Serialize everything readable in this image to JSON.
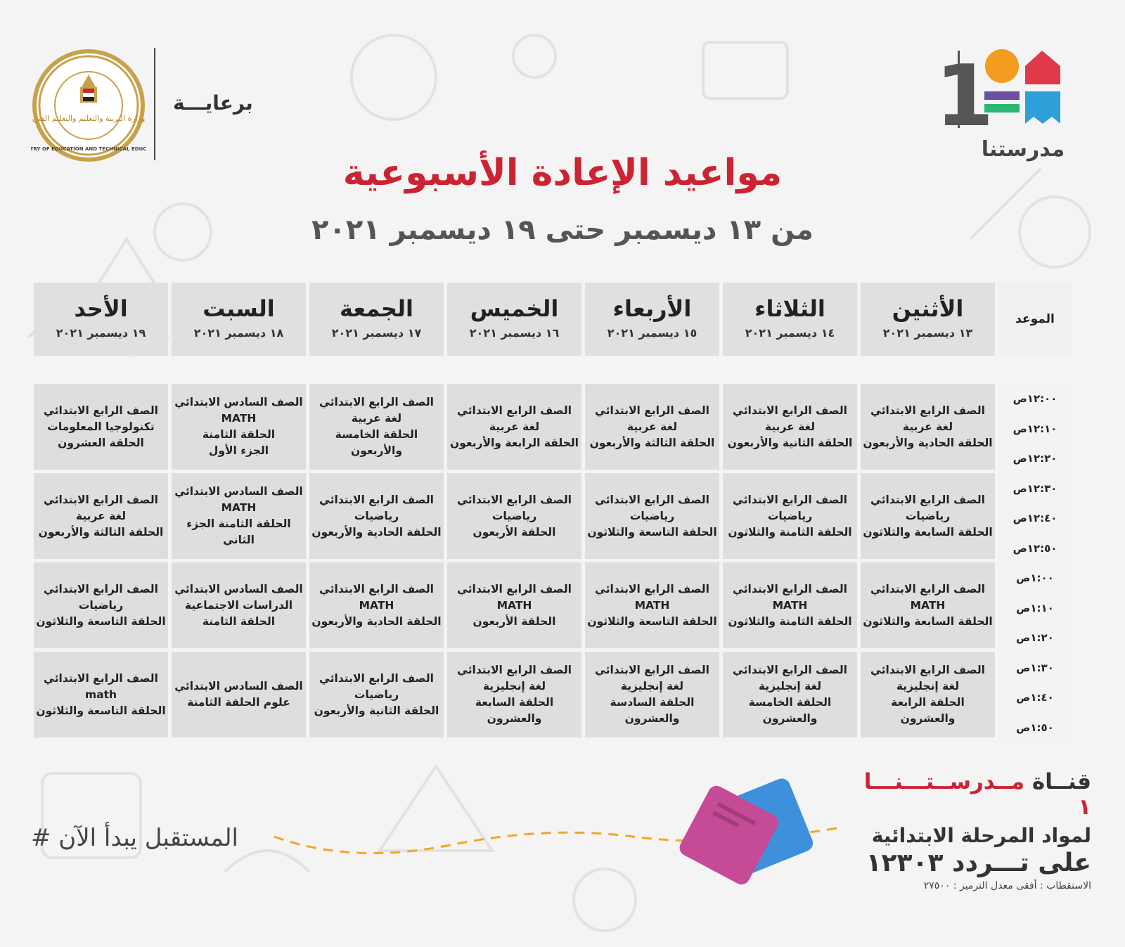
{
  "sponsor_label": "برعايـــة",
  "ministry_seal": {
    "arabic": "وزارة التربية والتعليم والتعليم الفني",
    "english": "MINISTRY OF EDUCATION AND TECHNICAL EDUCATION"
  },
  "brand": {
    "number": "1",
    "name": "مدرستنا"
  },
  "title": "مواعيد الإعادة الأسبوعية",
  "subtitle": "من ١٣ ديسمبر حتى ١٩ ديسمبر ٢٠٢١",
  "time_header": "الموعد",
  "days": [
    {
      "name": "الأثنين",
      "date": "١٣ ديسمبر ٢٠٢١"
    },
    {
      "name": "الثلاثاء",
      "date": "١٤ ديسمبر ٢٠٢١"
    },
    {
      "name": "الأربعاء",
      "date": "١٥ ديسمبر ٢٠٢١"
    },
    {
      "name": "الخميس",
      "date": "١٦ ديسمبر ٢٠٢١"
    },
    {
      "name": "الجمعة",
      "date": "١٧ ديسمبر ٢٠٢١"
    },
    {
      "name": "السبت",
      "date": "١٨ ديسمبر ٢٠٢١"
    },
    {
      "name": "الأحد",
      "date": "١٩ ديسمبر ٢٠٢١"
    }
  ],
  "times": [
    "١٢:٠٠ص",
    "١٢:١٠ص",
    "١٢:٢٠ص",
    "١٢:٣٠ص",
    "١٢:٤٠ص",
    "١٢:٥٠ص",
    "١:٠٠ص",
    "١:١٠ص",
    "١:٢٠ص",
    "١:٣٠ص",
    "١:٤٠ص",
    "١:٥٠ص"
  ],
  "rows": [
    [
      [
        "الصف الرابع الابتدائي",
        "لغة عربية",
        "الحلقة الحادية والأربعون"
      ],
      [
        "الصف الرابع الابتدائي",
        "لغة عربية",
        "الحلقة الثانية والأربعون"
      ],
      [
        "الصف الرابع الابتدائي",
        "لغة عربية",
        "الحلقة الثالثة والأربعون"
      ],
      [
        "الصف الرابع الابتدائي",
        "لغة عربية",
        "الحلقة الرابعة والأربعون"
      ],
      [
        "الصف الرابع الابتدائي",
        "لغة عربية",
        "الحلقة الخامسة والأربعون"
      ],
      [
        "الصف السادس الابتدائي",
        "MATH",
        "الحلقة الثامنة",
        "الجزء الأول"
      ],
      [
        "الصف الرابع الابتدائي",
        "تكنولوجيا المعلومات",
        "الحلقة العشرون"
      ]
    ],
    [
      [
        "الصف الرابع الابتدائي",
        "رياضيات",
        "الحلقة السابعة والثلاثون"
      ],
      [
        "الصف الرابع الابتدائي",
        "رياضيات",
        "الحلقة الثامنة والثلاثون"
      ],
      [
        "الصف الرابع الابتدائي",
        "رياضيات",
        "الحلقة التاسعة والثلاثون"
      ],
      [
        "الصف الرابع الابتدائي",
        "رياضيات",
        "الحلقة الأربعون"
      ],
      [
        "الصف الرابع الابتدائي",
        "رياضيات",
        "الحلقة الحادية والأربعون"
      ],
      [
        "الصف السادس الابتدائي",
        "MATH",
        "الحلقة الثامنة   الجزء",
        "الثاني"
      ],
      [
        "الصف الرابع الابتدائي",
        "لغة عربية",
        "الحلقة الثالثة والأربعون"
      ]
    ],
    [
      [
        "الصف الرابع الابتدائي",
        "MATH",
        "الحلقة السابعة والثلاثون"
      ],
      [
        "الصف الرابع الابتدائي",
        "MATH",
        "الحلقة الثامنة والثلاثون"
      ],
      [
        "الصف الرابع الابتدائي",
        "MATH",
        "الحلقة التاسعة والثلاثون"
      ],
      [
        "الصف الرابع الابتدائي",
        "MATH",
        "الحلقة الأربعون"
      ],
      [
        "الصف الرابع الابتدائي",
        "MATH",
        "الحلقة الحادية والأربعون"
      ],
      [
        "الصف السادس الابتدائي",
        "الدراسات الاجتماعية",
        "الحلقة الثامنة"
      ],
      [
        "الصف الرابع الابتدائي",
        "رياضيات",
        "الحلقة التاسعة والثلاثون"
      ]
    ],
    [
      [
        "الصف الرابع الابتدائي",
        "لغة إنجليزية",
        "الحلقة الرابعة والعشرون"
      ],
      [
        "الصف الرابع الابتدائي",
        "لغة إنجليزية",
        "الحلقة الخامسة",
        "والعشرون"
      ],
      [
        "الصف الرابع الابتدائي",
        "لغة إنجليزية",
        "الحلقة السادسة",
        "والعشرون"
      ],
      [
        "الصف الرابع الابتدائي",
        "لغة إنجليزية",
        "الحلقة السابعة والعشرون"
      ],
      [
        "الصف الرابع الابتدائي",
        "رياضيات",
        "الحلقة الثانية والأربعون"
      ],
      [
        "الصف السادس الابتدائي",
        "علوم    الحلقة الثامنة"
      ],
      [
        "الصف الرابع الابتدائي",
        "math",
        "الحلقة التاسعة والثلاثون"
      ]
    ]
  ],
  "channel": {
    "line1_prefix": "قنــاة",
    "line1_name": "مــدرســتـــنـــا ١",
    "line2": "لمواد المرحلة الابتدائية",
    "line3": "على تـــردد ١٢٣٠٣",
    "line4": "الاستقطاب : أفقى معدل الترميز : ٢٧٥٠٠"
  },
  "hashtag": "# المستقبل يبدأ الآن",
  "colors": {
    "title_red": "#cc2333",
    "cell_gray": "#dedede",
    "orange": "#f39c1f",
    "red_logo": "#e0394a",
    "purple": "#6b4fa0",
    "green": "#2bb673",
    "blue": "#2e9fd8"
  }
}
